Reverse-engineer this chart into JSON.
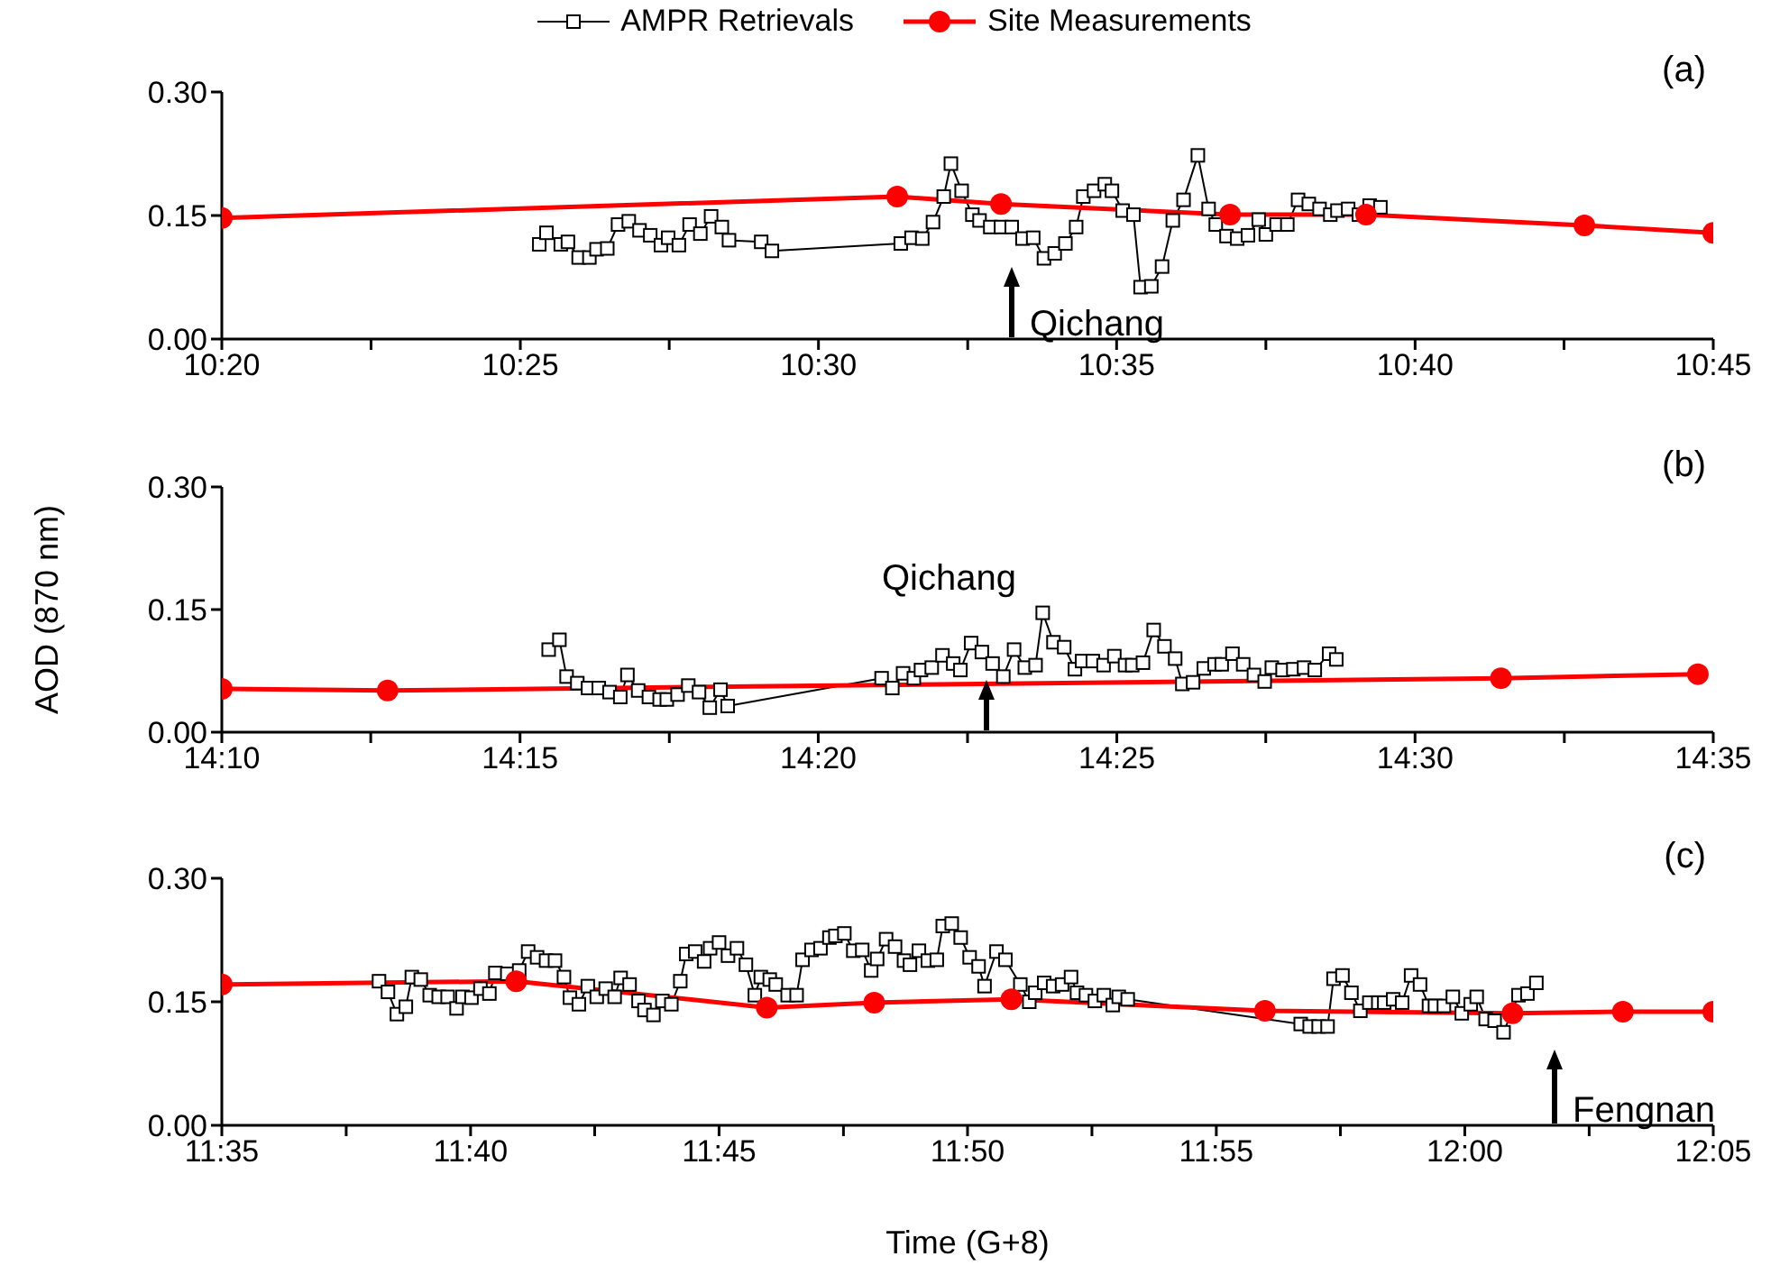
{
  "chart_data": [
    {
      "type": "line",
      "legend": "top",
      "xlim": [
        10.3333,
        10.75
      ],
      "xticks": [
        {
          "value": 10.3333,
          "label": "10:20"
        },
        {
          "value": 10.375,
          "label": null
        },
        {
          "value": 10.4167,
          "label": "10:25"
        },
        {
          "value": 10.4583,
          "label": null
        },
        {
          "value": 10.5,
          "label": "10:30"
        },
        {
          "value": 10.5417,
          "label": null
        },
        {
          "value": 10.5833,
          "label": "10:35"
        },
        {
          "value": 10.625,
          "label": null
        },
        {
          "value": 10.6667,
          "label": "10:40"
        },
        {
          "value": 10.7083,
          "label": null
        },
        {
          "value": 10.75,
          "label": "10:45"
        }
      ],
      "ylim": [
        0,
        0.3
      ],
      "yticks": [
        {
          "value": 0,
          "label": "0.00"
        },
        {
          "value": 0.15,
          "label": "0.15"
        },
        {
          "value": 0.3,
          "label": "0.30"
        }
      ],
      "series": [
        {
          "name": "AMPR Retrievals",
          "color": "#000000",
          "marker": "square",
          "x": [
            10.422,
            10.424,
            10.428,
            10.43,
            10.433,
            10.436,
            10.438,
            10.441,
            10.444,
            10.447,
            10.45,
            10.453,
            10.456,
            10.458,
            10.461,
            10.464,
            10.467,
            10.47,
            10.473,
            10.475,
            10.484,
            10.487,
            10.523,
            10.526,
            10.529,
            10.532,
            10.535,
            10.537,
            10.54,
            10.543,
            10.545,
            10.548,
            10.551,
            10.554,
            10.557,
            10.56,
            10.563,
            10.566,
            10.569,
            10.572,
            10.574,
            10.577,
            10.58,
            10.582,
            10.585,
            10.588,
            10.59,
            10.593,
            10.596,
            10.599,
            10.602,
            10.606,
            10.609,
            10.611,
            10.614,
            10.617,
            10.62,
            10.623,
            10.625,
            10.628,
            10.631,
            10.634,
            10.637,
            10.64,
            10.643,
            10.645,
            10.648,
            10.651,
            10.654,
            10.657
          ],
          "values": [
            0.115,
            0.129,
            0.115,
            0.118,
            0.099,
            0.099,
            0.109,
            0.11,
            0.139,
            0.143,
            0.132,
            0.126,
            0.114,
            0.123,
            0.114,
            0.139,
            0.128,
            0.149,
            0.136,
            0.12,
            0.118,
            0.107,
            0.116,
            0.123,
            0.122,
            0.142,
            0.173,
            0.213,
            0.18,
            0.151,
            0.144,
            0.136,
            0.136,
            0.136,
            0.122,
            0.123,
            0.098,
            0.104,
            0.116,
            0.136,
            0.173,
            0.18,
            0.188,
            0.18,
            0.156,
            0.151,
            0.063,
            0.064,
            0.088,
            0.144,
            0.169,
            0.223,
            0.158,
            0.139,
            0.125,
            0.122,
            0.126,
            0.145,
            0.127,
            0.139,
            0.139,
            0.169,
            0.164,
            0.158,
            0.151,
            0.156,
            0.158,
            0.151,
            0.162,
            0.16
          ]
        },
        {
          "name": "Site Measurements",
          "color": "#ff0000",
          "marker": "circle",
          "x": [
            10.3333,
            10.522,
            10.551,
            10.615,
            10.653,
            10.714,
            10.75
          ],
          "values": [
            0.147,
            0.173,
            0.164,
            0.151,
            0.151,
            0.138,
            0.129
          ]
        }
      ],
      "annotations": [
        "(a)",
        "Qichang"
      ]
    },
    {
      "type": "line",
      "ylabel": "AOD (870 nm)",
      "xlim": [
        14.1667,
        14.5833
      ],
      "xticks": [
        {
          "value": 14.1667,
          "label": "14:10"
        },
        {
          "value": 14.2083,
          "label": null
        },
        {
          "value": 14.25,
          "label": "14:15"
        },
        {
          "value": 14.2917,
          "label": null
        },
        {
          "value": 14.3333,
          "label": "14:20"
        },
        {
          "value": 14.375,
          "label": null
        },
        {
          "value": 14.4167,
          "label": "14:25"
        },
        {
          "value": 14.4583,
          "label": null
        },
        {
          "value": 14.5,
          "label": "14:30"
        },
        {
          "value": 14.5417,
          "label": null
        },
        {
          "value": 14.5833,
          "label": "14:35"
        }
      ],
      "ylim": [
        0,
        0.3
      ],
      "yticks": [
        {
          "value": 0,
          "label": "0.00"
        },
        {
          "value": 0.15,
          "label": "0.15"
        },
        {
          "value": 0.3,
          "label": "0.30"
        }
      ],
      "series": [
        {
          "color": "#000000",
          "marker": "square",
          "x": [
            14.258,
            14.261,
            14.263,
            14.266,
            14.269,
            14.272,
            14.275,
            14.278,
            14.28,
            14.283,
            14.286,
            14.289,
            14.291,
            14.294,
            14.297,
            14.3,
            14.303,
            14.306,
            14.308,
            14.351,
            14.354,
            14.357,
            14.36,
            14.362,
            14.365,
            14.368,
            14.371,
            14.373,
            14.376,
            14.379,
            14.382,
            14.385,
            14.388,
            14.391,
            14.394,
            14.396,
            14.399,
            14.402,
            14.405,
            14.407,
            14.41,
            14.413,
            14.416,
            14.419,
            14.421,
            14.424,
            14.427,
            14.43,
            14.433,
            14.435,
            14.438,
            14.441,
            14.444,
            14.446,
            14.449,
            14.452,
            14.455,
            14.458,
            14.46,
            14.463,
            14.466,
            14.469,
            14.472,
            14.476,
            14.478
          ],
          "values": [
            0.101,
            0.113,
            0.068,
            0.06,
            0.054,
            0.054,
            0.049,
            0.043,
            0.07,
            0.051,
            0.043,
            0.04,
            0.04,
            0.046,
            0.057,
            0.049,
            0.03,
            0.052,
            0.032,
            0.066,
            0.054,
            0.072,
            0.066,
            0.076,
            0.079,
            0.094,
            0.084,
            0.076,
            0.109,
            0.098,
            0.084,
            0.068,
            0.101,
            0.079,
            0.082,
            0.146,
            0.11,
            0.104,
            0.077,
            0.087,
            0.087,
            0.082,
            0.093,
            0.082,
            0.082,
            0.085,
            0.125,
            0.105,
            0.09,
            0.059,
            0.061,
            0.078,
            0.083,
            0.083,
            0.096,
            0.083,
            0.07,
            0.062,
            0.079,
            0.076,
            0.077,
            0.079,
            0.076,
            0.096,
            0.089
          ]
        },
        {
          "color": "#ff0000",
          "marker": "circle",
          "x": [
            14.1667,
            14.213,
            14.524,
            14.579
          ],
          "values": [
            0.053,
            0.051,
            0.066,
            0.071
          ]
        }
      ],
      "annotations": [
        "(b)",
        "Qichang"
      ]
    },
    {
      "type": "line",
      "xlabel": "Time (G+8)",
      "xlim": [
        11.5833,
        12.0833
      ],
      "xticks": [
        {
          "value": 11.5833,
          "label": "11:35"
        },
        {
          "value": 11.625,
          "label": null
        },
        {
          "value": 11.6667,
          "label": "11:40"
        },
        {
          "value": 11.7083,
          "label": null
        },
        {
          "value": 11.75,
          "label": "11:45"
        },
        {
          "value": 11.7917,
          "label": null
        },
        {
          "value": 11.8333,
          "label": "11:50"
        },
        {
          "value": 11.875,
          "label": null
        },
        {
          "value": 11.9167,
          "label": "11:55"
        },
        {
          "value": 11.9583,
          "label": null
        },
        {
          "value": 12,
          "label": "12:00"
        },
        {
          "value": 12.0417,
          "label": null
        },
        {
          "value": 12.0833,
          "label": "12:05"
        }
      ],
      "ylim": [
        0,
        0.3
      ],
      "yticks": [
        {
          "value": 0,
          "label": "0.00"
        },
        {
          "value": 0.15,
          "label": "0.15"
        },
        {
          "value": 0.3,
          "label": "0.30"
        }
      ],
      "series": [
        {
          "color": "#000000",
          "marker": "square",
          "x": [
            11.636,
            11.639,
            11.642,
            11.645,
            11.647,
            11.65,
            11.653,
            11.656,
            11.659,
            11.662,
            11.664,
            11.667,
            11.67,
            11.673,
            11.675,
            11.679,
            11.683,
            11.686,
            11.689,
            11.692,
            11.695,
            11.698,
            11.7,
            11.703,
            11.706,
            11.709,
            11.712,
            11.715,
            11.717,
            11.72,
            11.723,
            11.725,
            11.728,
            11.731,
            11.734,
            11.737,
            11.739,
            11.742,
            11.745,
            11.747,
            11.75,
            11.753,
            11.756,
            11.759,
            11.762,
            11.764,
            11.767,
            11.769,
            11.773,
            11.776,
            11.778,
            11.781,
            11.784,
            11.787,
            11.789,
            11.792,
            11.795,
            11.798,
            11.801,
            11.803,
            11.806,
            11.809,
            11.812,
            11.814,
            11.817,
            11.82,
            11.823,
            11.825,
            11.828,
            11.831,
            11.834,
            11.837,
            11.839,
            11.843,
            11.846,
            11.851,
            11.854,
            11.856,
            11.859,
            11.862,
            11.865,
            11.868,
            11.87,
            11.873,
            11.876,
            11.879,
            11.882,
            11.884,
            11.887,
            11.945,
            11.948,
            11.951,
            11.954,
            11.956,
            11.959,
            11.962,
            11.965,
            11.968,
            11.971,
            11.973,
            11.976,
            11.979,
            11.982,
            11.985,
            11.988,
            11.99,
            11.993,
            11.996,
            11.999,
            12.002,
            12.004,
            12.007,
            12.01,
            12.013,
            12.018,
            12.021,
            12.024
          ],
          "values": [
            0.175,
            0.162,
            0.135,
            0.144,
            0.18,
            0.177,
            0.158,
            0.156,
            0.156,
            0.142,
            0.156,
            0.155,
            0.166,
            0.16,
            0.185,
            0.184,
            0.188,
            0.211,
            0.204,
            0.2,
            0.2,
            0.18,
            0.155,
            0.147,
            0.169,
            0.156,
            0.166,
            0.156,
            0.179,
            0.171,
            0.151,
            0.14,
            0.134,
            0.151,
            0.147,
            0.175,
            0.208,
            0.211,
            0.199,
            0.215,
            0.222,
            0.206,
            0.215,
            0.195,
            0.158,
            0.18,
            0.177,
            0.171,
            0.158,
            0.158,
            0.201,
            0.213,
            0.215,
            0.228,
            0.23,
            0.233,
            0.212,
            0.213,
            0.188,
            0.202,
            0.226,
            0.217,
            0.2,
            0.195,
            0.212,
            0.2,
            0.201,
            0.242,
            0.245,
            0.228,
            0.204,
            0.193,
            0.169,
            0.211,
            0.201,
            0.171,
            0.15,
            0.161,
            0.173,
            0.169,
            0.171,
            0.18,
            0.161,
            0.158,
            0.151,
            0.158,
            0.146,
            0.156,
            0.153,
            0.123,
            0.12,
            0.12,
            0.12,
            0.178,
            0.182,
            0.161,
            0.139,
            0.149,
            0.149,
            0.149,
            0.153,
            0.149,
            0.182,
            0.171,
            0.145,
            0.145,
            0.145,
            0.156,
            0.136,
            0.147,
            0.156,
            0.129,
            0.127,
            0.113,
            0.158,
            0.16,
            0.173
          ]
        },
        {
          "color": "#ff0000",
          "marker": "circle",
          "x": [
            11.5833,
            11.682,
            11.766,
            11.802,
            11.848,
            11.933,
            12.016,
            12.053,
            12.0833
          ],
          "values": [
            0.171,
            0.175,
            0.143,
            0.149,
            0.153,
            0.139,
            0.136,
            0.138,
            0.138
          ]
        }
      ],
      "annotations": [
        "(c)",
        "Fengnan"
      ]
    }
  ]
}
